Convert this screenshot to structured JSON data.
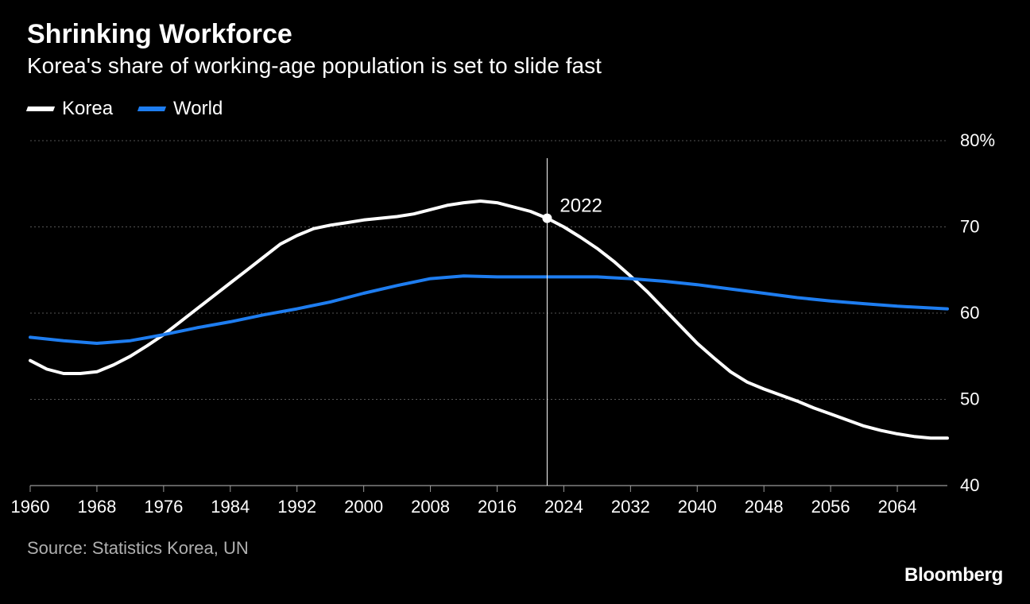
{
  "title": "Shrinking Workforce",
  "subtitle": "Korea's share of working-age population is set to slide fast",
  "source": "Source: Statistics Korea, UN",
  "brand": "Bloomberg",
  "legend": [
    {
      "label": "Korea",
      "color": "#ffffff"
    },
    {
      "label": "World",
      "color": "#1e7df0"
    }
  ],
  "chart": {
    "type": "line",
    "background_color": "#000000",
    "grid_color": "#555555",
    "axis_color": "#9a9a9a",
    "text_color": "#ffffff",
    "label_fontsize": 22,
    "line_width": 4,
    "xlim": [
      1960,
      2070
    ],
    "ylim": [
      40,
      80
    ],
    "y_ticks": [
      40,
      50,
      60,
      70,
      80
    ],
    "y_tick_labels": [
      "40",
      "50",
      "60",
      "70",
      "80%"
    ],
    "x_ticks": [
      1960,
      1968,
      1976,
      1984,
      1992,
      2000,
      2008,
      2016,
      2024,
      2032,
      2040,
      2048,
      2056,
      2064
    ],
    "marker": {
      "year": 2022,
      "label": "2022",
      "y_value": 71
    },
    "series": [
      {
        "name": "Korea",
        "color": "#ffffff",
        "points": [
          [
            1960,
            54.5
          ],
          [
            1962,
            53.5
          ],
          [
            1964,
            53.0
          ],
          [
            1966,
            53.0
          ],
          [
            1968,
            53.2
          ],
          [
            1970,
            54.0
          ],
          [
            1972,
            55.0
          ],
          [
            1974,
            56.2
          ],
          [
            1976,
            57.5
          ],
          [
            1978,
            59.0
          ],
          [
            1980,
            60.5
          ],
          [
            1982,
            62.0
          ],
          [
            1984,
            63.5
          ],
          [
            1986,
            65.0
          ],
          [
            1988,
            66.5
          ],
          [
            1990,
            68.0
          ],
          [
            1992,
            69.0
          ],
          [
            1994,
            69.8
          ],
          [
            1996,
            70.2
          ],
          [
            1998,
            70.5
          ],
          [
            2000,
            70.8
          ],
          [
            2002,
            71.0
          ],
          [
            2004,
            71.2
          ],
          [
            2006,
            71.5
          ],
          [
            2008,
            72.0
          ],
          [
            2010,
            72.5
          ],
          [
            2012,
            72.8
          ],
          [
            2014,
            73.0
          ],
          [
            2016,
            72.8
          ],
          [
            2018,
            72.3
          ],
          [
            2020,
            71.8
          ],
          [
            2022,
            71.0
          ],
          [
            2024,
            70.0
          ],
          [
            2026,
            68.8
          ],
          [
            2028,
            67.5
          ],
          [
            2030,
            66.0
          ],
          [
            2032,
            64.3
          ],
          [
            2034,
            62.5
          ],
          [
            2036,
            60.5
          ],
          [
            2038,
            58.5
          ],
          [
            2040,
            56.5
          ],
          [
            2042,
            54.8
          ],
          [
            2044,
            53.2
          ],
          [
            2046,
            52.0
          ],
          [
            2048,
            51.2
          ],
          [
            2050,
            50.5
          ],
          [
            2052,
            49.8
          ],
          [
            2054,
            49.0
          ],
          [
            2056,
            48.3
          ],
          [
            2058,
            47.6
          ],
          [
            2060,
            46.9
          ],
          [
            2062,
            46.4
          ],
          [
            2064,
            46.0
          ],
          [
            2066,
            45.7
          ],
          [
            2068,
            45.5
          ],
          [
            2070,
            45.5
          ]
        ]
      },
      {
        "name": "World",
        "color": "#1e7df0",
        "points": [
          [
            1960,
            57.2
          ],
          [
            1964,
            56.8
          ],
          [
            1968,
            56.5
          ],
          [
            1972,
            56.8
          ],
          [
            1976,
            57.5
          ],
          [
            1980,
            58.3
          ],
          [
            1984,
            59.0
          ],
          [
            1988,
            59.8
          ],
          [
            1992,
            60.5
          ],
          [
            1996,
            61.3
          ],
          [
            2000,
            62.3
          ],
          [
            2004,
            63.2
          ],
          [
            2008,
            64.0
          ],
          [
            2012,
            64.3
          ],
          [
            2016,
            64.2
          ],
          [
            2020,
            64.2
          ],
          [
            2024,
            64.2
          ],
          [
            2028,
            64.2
          ],
          [
            2032,
            64.0
          ],
          [
            2036,
            63.7
          ],
          [
            2040,
            63.3
          ],
          [
            2044,
            62.8
          ],
          [
            2048,
            62.3
          ],
          [
            2052,
            61.8
          ],
          [
            2056,
            61.4
          ],
          [
            2060,
            61.1
          ],
          [
            2064,
            60.8
          ],
          [
            2068,
            60.6
          ],
          [
            2070,
            60.5
          ]
        ]
      }
    ]
  }
}
